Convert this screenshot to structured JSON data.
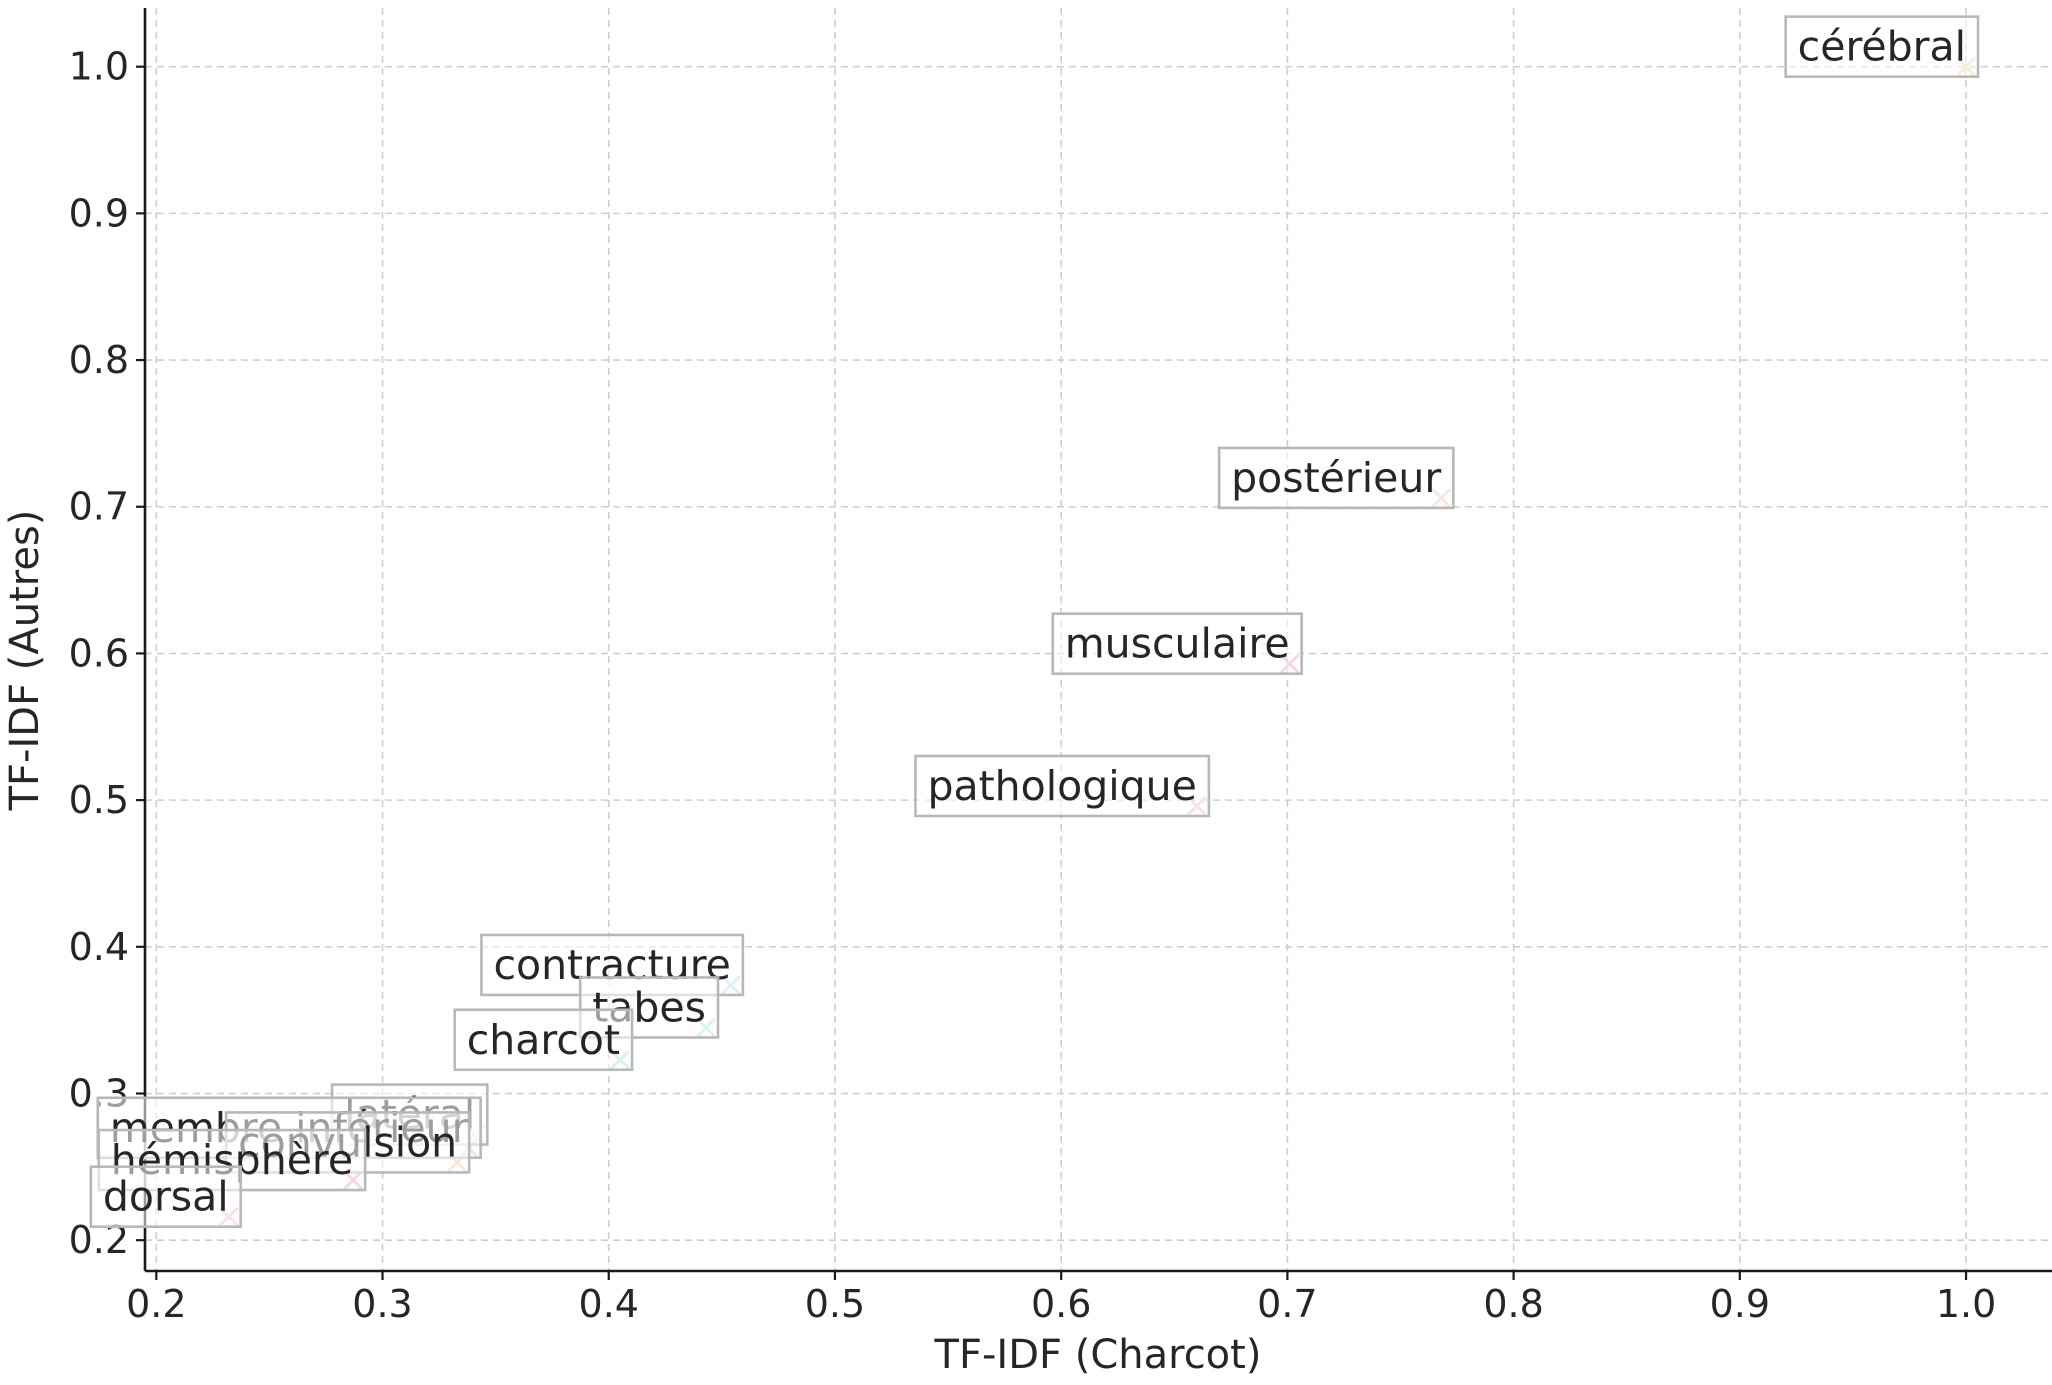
{
  "chart_data": {
    "type": "scatter",
    "title": "",
    "xlabel": "TF-IDF (Charcot)",
    "ylabel": "TF-IDF (Autres)",
    "xlim": [
      0.195,
      1.038
    ],
    "ylim": [
      0.179,
      1.04
    ],
    "xticks": [
      "0.2",
      "0.3",
      "0.4",
      "0.5",
      "0.6",
      "0.7",
      "0.8",
      "0.9",
      "1.0"
    ],
    "xtick_values": [
      0.2,
      0.3,
      0.4,
      0.5,
      0.6,
      0.7,
      0.8,
      0.9,
      1.0
    ],
    "yticks": [
      "0.2",
      "0.3",
      "0.4",
      "0.5",
      "0.6",
      "0.7",
      "0.8",
      "0.9",
      "1.0"
    ],
    "ytick_values": [
      0.2,
      0.3,
      0.4,
      0.5,
      0.6,
      0.7,
      0.8,
      0.9,
      1.0
    ],
    "grid": true,
    "marker": "x",
    "points": [
      {
        "label": "cérébral",
        "x": 1.0,
        "y": 1.0,
        "color": "#f7d9a8"
      },
      {
        "label": "postérieur",
        "x": 0.768,
        "y": 0.706,
        "color": "#f5c8a8"
      },
      {
        "label": "musculaire",
        "x": 0.701,
        "y": 0.593,
        "color": "#f2a8b4"
      },
      {
        "label": "pathologique",
        "x": 0.66,
        "y": 0.496,
        "color": "#e8b8e0"
      },
      {
        "label": "contracture",
        "x": 0.454,
        "y": 0.374,
        "color": "#b4dcf4"
      },
      {
        "label": "tabes",
        "x": 0.443,
        "y": 0.345,
        "color": "#a8e4e0"
      },
      {
        "label": "charcot",
        "x": 0.405,
        "y": 0.323,
        "color": "#a8e4b8"
      },
      {
        "label": "latéral",
        "x": 0.341,
        "y": 0.272,
        "color": "#d4eca8"
      },
      {
        "label": "membre inférieur",
        "x": 0.338,
        "y": 0.263,
        "color": "#c8c8c8"
      },
      {
        "label": "convulsion",
        "x": 0.333,
        "y": 0.253,
        "color": "#f5c8a8"
      },
      {
        "label": "hémisphère",
        "x": 0.287,
        "y": 0.241,
        "color": "#f2a8b4"
      },
      {
        "label": "dorsal",
        "x": 0.232,
        "y": 0.216,
        "color": "#e8b8e0"
      }
    ]
  }
}
